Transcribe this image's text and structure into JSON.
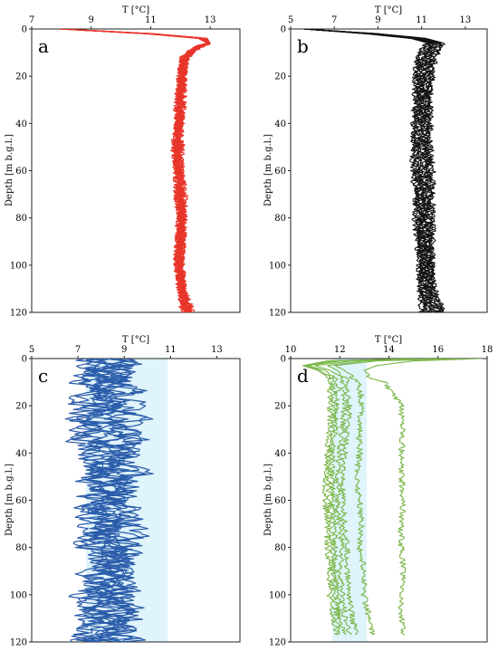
{
  "chart_data": [
    {
      "type": "line",
      "panel_label": "a",
      "title": "",
      "xlabel": "T [°C]",
      "ylabel": "Depth [m b.g.l.]",
      "xlim": [
        7,
        14
      ],
      "x_ticks": [
        7,
        9,
        11,
        13
      ],
      "ylim": [
        0,
        120
      ],
      "y_ticks": [
        0,
        20,
        40,
        60,
        80,
        100,
        120
      ],
      "y_inverted": true,
      "x_axis_position": "top",
      "grid": false,
      "legend": "none",
      "color": "#e8352a",
      "series_count": 12,
      "series": [
        {
          "depth": [
            0,
            2,
            4,
            6,
            8,
            12,
            20,
            30,
            40,
            50,
            60,
            70,
            80,
            90,
            100,
            110,
            120
          ],
          "temperature": [
            7.9,
            10.8,
            12.6,
            12.9,
            12.5,
            12.1,
            12.0,
            11.9,
            11.9,
            11.8,
            11.9,
            11.9,
            12.0,
            11.9,
            11.9,
            12.0,
            12.1
          ]
        },
        {
          "depth": [
            0,
            2,
            4,
            6,
            8,
            12,
            20,
            30,
            40,
            50,
            60,
            70,
            80,
            90,
            100,
            110,
            120
          ],
          "temperature": [
            8.0,
            11.1,
            12.9,
            13.0,
            12.6,
            12.2,
            12.1,
            12.1,
            12.0,
            12.0,
            12.0,
            12.1,
            12.1,
            12.1,
            12.0,
            12.1,
            12.4
          ]
        }
      ]
    },
    {
      "type": "line",
      "panel_label": "b",
      "title": "",
      "xlabel": "T [°C]",
      "ylabel": "Depth [m b.g.l.]",
      "xlim": [
        5,
        14
      ],
      "x_ticks": [
        5,
        7,
        9,
        11,
        13
      ],
      "ylim": [
        0,
        120
      ],
      "y_ticks": [
        0,
        20,
        40,
        60,
        80,
        100,
        120
      ],
      "y_inverted": true,
      "x_axis_position": "top",
      "grid": false,
      "legend": "none",
      "color": "#111111",
      "series_count": 12,
      "series": [
        {
          "depth": [
            0,
            2,
            4,
            6,
            8,
            12,
            20,
            30,
            40,
            50,
            60,
            70,
            80,
            90,
            100,
            110,
            120
          ],
          "temperature": [
            5.6,
            9.0,
            11.2,
            12.0,
            11.9,
            11.6,
            11.5,
            11.4,
            11.4,
            11.4,
            11.5,
            11.5,
            11.5,
            11.5,
            11.5,
            11.6,
            12.0
          ]
        },
        {
          "depth": [
            0,
            2,
            4,
            6,
            8,
            12,
            20,
            30,
            40,
            50,
            60,
            70,
            80,
            90,
            100,
            110,
            120
          ],
          "temperature": [
            5.6,
            8.4,
            10.5,
            11.3,
            11.0,
            10.8,
            10.7,
            10.7,
            10.6,
            10.6,
            10.6,
            10.7,
            10.7,
            10.8,
            10.9,
            10.9,
            11.0
          ]
        }
      ]
    },
    {
      "type": "line",
      "panel_label": "c",
      "title": "",
      "xlabel": "T [°C]",
      "ylabel": "Depth [m b.g.l.]",
      "xlim": [
        5,
        14
      ],
      "x_ticks": [
        5,
        7,
        9,
        11,
        13
      ],
      "ylim": [
        0,
        120
      ],
      "y_ticks": [
        0,
        20,
        40,
        60,
        80,
        100,
        120
      ],
      "y_inverted": true,
      "x_axis_position": "top",
      "grid": false,
      "legend": "none",
      "color": "#2a5caa",
      "series_count": 10,
      "series": [
        {
          "depth": [
            0,
            10,
            20,
            30,
            40,
            50,
            60,
            70,
            80,
            90,
            100,
            110,
            120
          ],
          "temperature": [
            8.5,
            9.2,
            9.5,
            8.8,
            9.3,
            9.0,
            9.4,
            8.9,
            9.1,
            9.5,
            8.8,
            9.2,
            9.0
          ]
        },
        {
          "depth": [
            0,
            10,
            20,
            30,
            40,
            50,
            60,
            70,
            80,
            90,
            100,
            110,
            120
          ],
          "temperature": [
            7.5,
            8.0,
            7.2,
            8.4,
            7.8,
            8.2,
            7.4,
            8.0,
            7.7,
            8.3,
            7.9,
            8.1,
            8.0
          ]
        }
      ]
    },
    {
      "type": "line",
      "panel_label": "d",
      "title": "",
      "xlabel": "T [°C]",
      "ylabel": "Depth [m b.g.l.]",
      "xlim": [
        10,
        18
      ],
      "x_ticks": [
        10,
        12,
        14,
        16,
        18
      ],
      "ylim": [
        0,
        120
      ],
      "y_ticks": [
        0,
        20,
        40,
        60,
        80,
        100,
        120
      ],
      "y_inverted": true,
      "x_axis_position": "top",
      "grid": false,
      "legend": "none",
      "color": "#7ab648",
      "series_count": 7,
      "series": [
        {
          "depth": [
            0,
            1,
            3,
            5,
            8,
            10,
            20,
            30,
            40,
            50,
            60,
            70,
            80,
            90,
            100,
            110,
            117
          ],
          "temperature": [
            17.8,
            15.0,
            13.5,
            13.0,
            13.2,
            13.8,
            14.5,
            14.6,
            14.5,
            14.5,
            14.6,
            14.5,
            14.5,
            14.6,
            14.5,
            14.5,
            14.6
          ]
        },
        {
          "depth": [
            0,
            1,
            3,
            5,
            8,
            10,
            20,
            30,
            40,
            50,
            60,
            70,
            80,
            90,
            100,
            110,
            117
          ],
          "temperature": [
            17.0,
            13.5,
            11.8,
            12.2,
            12.5,
            12.8,
            12.9,
            12.8,
            12.8,
            12.7,
            12.8,
            12.9,
            12.8,
            13.0,
            13.0,
            13.2,
            13.3
          ]
        },
        {
          "depth": [
            0,
            1,
            3,
            5,
            8,
            10,
            20,
            30,
            40,
            50,
            60,
            70,
            80,
            90,
            100,
            110,
            117
          ],
          "temperature": [
            16.5,
            13.0,
            11.5,
            11.9,
            12.2,
            12.3,
            12.4,
            12.3,
            12.2,
            12.1,
            12.1,
            12.2,
            12.3,
            12.3,
            12.4,
            12.5,
            12.7
          ]
        },
        {
          "depth": [
            0,
            1,
            3,
            5,
            8,
            10,
            20,
            30,
            40,
            50,
            60,
            70,
            80,
            90,
            100,
            110,
            117
          ],
          "temperature": [
            16.2,
            12.5,
            11.0,
            11.6,
            12.0,
            12.1,
            12.2,
            12.1,
            12.0,
            11.9,
            11.9,
            12.0,
            12.1,
            12.0,
            12.1,
            12.2,
            12.4
          ]
        },
        {
          "depth": [
            0,
            1,
            3,
            5,
            8,
            10,
            20,
            30,
            40,
            50,
            60,
            70,
            80,
            90,
            100,
            110,
            117
          ],
          "temperature": [
            15.8,
            12.0,
            10.7,
            11.4,
            11.8,
            11.9,
            11.9,
            11.8,
            11.7,
            11.7,
            11.7,
            11.8,
            11.8,
            11.8,
            11.9,
            12.0,
            12.2
          ]
        },
        {
          "depth": [
            0,
            1,
            3,
            5,
            8,
            10,
            20,
            30,
            40,
            50,
            60,
            70,
            80,
            90,
            100,
            110,
            117
          ],
          "temperature": [
            15.5,
            11.8,
            10.6,
            11.2,
            11.6,
            11.7,
            11.8,
            11.7,
            11.6,
            11.5,
            11.6,
            11.6,
            11.7,
            11.7,
            11.8,
            11.9,
            12.0
          ]
        },
        {
          "depth": [
            0,
            1,
            3,
            5,
            8,
            10,
            20,
            30,
            40,
            50,
            60,
            70,
            80,
            90,
            100,
            110,
            117
          ],
          "temperature": [
            15.2,
            11.5,
            10.5,
            11.1,
            11.5,
            11.6,
            11.6,
            11.6,
            11.5,
            11.4,
            11.4,
            11.5,
            11.5,
            11.6,
            11.6,
            11.7,
            11.9
          ]
        }
      ]
    }
  ]
}
